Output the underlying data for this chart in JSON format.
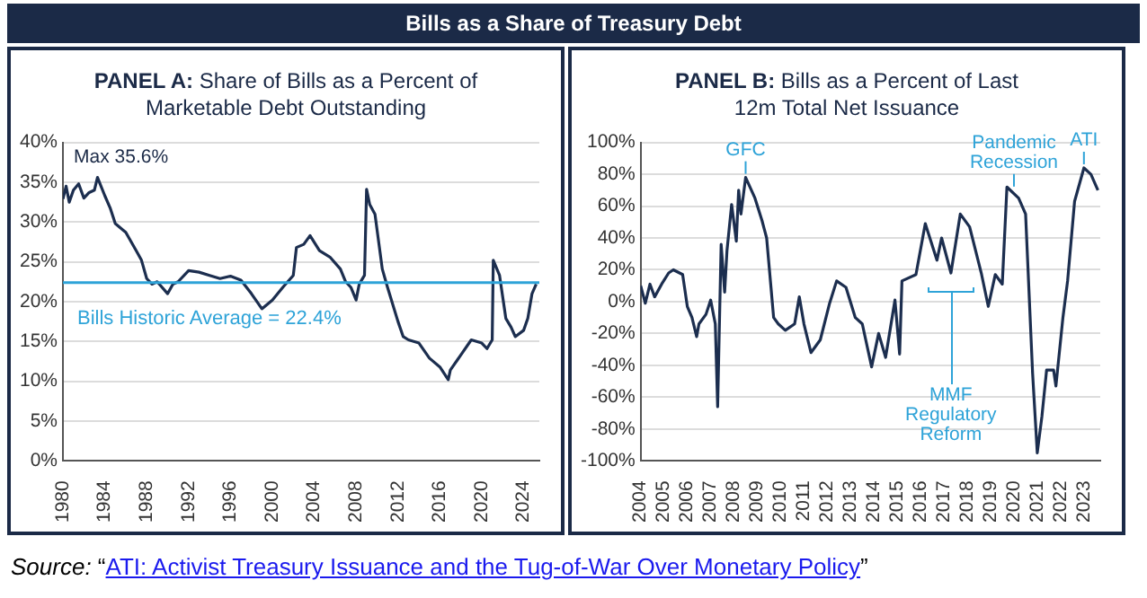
{
  "chart_data": [
    {
      "type": "line",
      "title": "PANEL A: Share of Bills as a Percent of Marketable Debt Outstanding",
      "annotations": [
        "Bills as a Share of Treasury Debt",
        {
          "text": "Max 35.6%",
          "x": 1983.3,
          "y": 35.6
        }
      ],
      "xlim": [
        1980,
        2025.5
      ],
      "xticks": [
        1980,
        1984,
        1988,
        1992,
        1996,
        2000,
        2004,
        2008,
        2012,
        2016,
        2020,
        2024
      ],
      "ylim": [
        0,
        40
      ],
      "yticks": [
        {
          "value": 0,
          "label": "0%"
        },
        {
          "value": 5,
          "label": "5%"
        },
        {
          "value": 10,
          "label": "10%"
        },
        {
          "value": 15,
          "label": "15%"
        },
        {
          "value": 20,
          "label": "20%"
        },
        {
          "value": 25,
          "label": "25%"
        },
        {
          "value": 30,
          "label": "30%"
        },
        {
          "value": 35,
          "label": "35%"
        },
        {
          "value": 40,
          "label": "40%"
        }
      ],
      "grid": "y",
      "ref_lines": [
        {
          "axis": "y",
          "value": 22.4,
          "label": "Bills Historic Average = 22.4%",
          "color": "#2ea3d8"
        }
      ],
      "series": [
        {
          "color": "#1c2e4f",
          "x": [
            1980,
            1980.3,
            1980.6,
            1981,
            1981.5,
            1982,
            1982.5,
            1983,
            1983.3,
            1984,
            1984.5,
            1985,
            1986,
            1987,
            1987.5,
            1988,
            1988.5,
            1989,
            1990,
            1990.5,
            1991,
            1992,
            1993,
            1994,
            1995,
            1996,
            1997,
            1998,
            1999,
            2000,
            2001,
            2002,
            2002.3,
            2003,
            2003.6,
            2004.5,
            2005.5,
            2006.5,
            2007,
            2007.5,
            2008,
            2008.3,
            2008.8,
            2009,
            2009.3,
            2009.8,
            2010.5,
            2011,
            2012,
            2012.5,
            2013,
            2014,
            2015,
            2016,
            2016.8,
            2017,
            2018,
            2019,
            2020,
            2020.5,
            2021,
            2021.1,
            2021.7,
            2022.3,
            2022.8,
            2023.2,
            2024,
            2024.4,
            2024.8,
            2025.2
          ],
          "values": [
            32.9,
            34.5,
            32.5,
            34,
            34.8,
            33,
            33.7,
            34,
            35.6,
            33.3,
            31.8,
            29.8,
            28.7,
            26.4,
            25.2,
            22.9,
            22.2,
            22.5,
            21,
            22.2,
            22.5,
            23.9,
            23.7,
            23.3,
            22.9,
            23.2,
            22.7,
            21,
            19.1,
            20.2,
            21.8,
            23.3,
            26.8,
            27.2,
            28.3,
            26.4,
            25.6,
            24.1,
            22.5,
            21.8,
            20.2,
            22.2,
            23.3,
            34.1,
            32.2,
            31,
            24.1,
            21.8,
            17.5,
            15.6,
            15.2,
            14.8,
            12.9,
            11.8,
            10.2,
            11.4,
            13.3,
            15.2,
            14.8,
            14.1,
            15.2,
            25.2,
            23.3,
            17.9,
            16.8,
            15.6,
            16.4,
            17.9,
            21,
            22.2
          ]
        }
      ]
    },
    {
      "type": "line",
      "title": "PANEL B: Bills as a Percent of Last 12m Total Net Issuance",
      "annotations": [
        {
          "text": "GFC",
          "x": 2008.5,
          "y": 78
        },
        {
          "text": "Pandemic Recession",
          "x": 2020,
          "y": 70
        },
        {
          "text": "ATI",
          "x": 2023,
          "y": 84
        },
        "MMF Regulatory Reform",
        "Source: “ATI: Activist Treasury Issuance and the Tug-of-War Over Monetary Policy”"
      ],
      "xlim": [
        2004,
        2023.7
      ],
      "xticks": [
        2004,
        2005,
        2006,
        2007,
        2008,
        2009,
        2010,
        2011,
        2012,
        2013,
        2014,
        2015,
        2016,
        2017,
        2018,
        2019,
        2020,
        2021,
        2022,
        2023
      ],
      "ylim": [
        -100,
        100
      ],
      "yticks": [
        {
          "value": -100,
          "label": "-100%"
        },
        {
          "value": -80,
          "label": "-80%"
        },
        {
          "value": -60,
          "label": "-60%"
        },
        {
          "value": -40,
          "label": "-40%"
        },
        {
          "value": -20,
          "label": "-20%"
        },
        {
          "value": 0,
          "label": "0%"
        },
        {
          "value": 20,
          "label": "20%"
        },
        {
          "value": 40,
          "label": "40%"
        },
        {
          "value": 60,
          "label": "60%"
        },
        {
          "value": 80,
          "label": "80%"
        },
        {
          "value": 100,
          "label": "100%"
        }
      ],
      "grid": "y",
      "series": [
        {
          "color": "#1c2e4f",
          "x": [
            2004.0,
            2004.2,
            2004.4,
            2004.6,
            2004.9,
            2005.2,
            2005.4,
            2005.8,
            2006.0,
            2006.2,
            2006.4,
            2006.5,
            2006.8,
            2007.0,
            2007.2,
            2007.3,
            2007.45,
            2007.6,
            2007.7,
            2007.9,
            2008.1,
            2008.2,
            2008.3,
            2008.5,
            2008.9,
            2009.2,
            2009.4,
            2009.7,
            2009.9,
            2010.2,
            2010.6,
            2010.8,
            2011.0,
            2011.3,
            2011.7,
            2012.1,
            2012.4,
            2012.8,
            2013.2,
            2013.5,
            2013.9,
            2014.2,
            2014.5,
            2014.8,
            2014.9,
            2015.1,
            2015.2,
            2015.8,
            2016.2,
            2016.7,
            2016.9,
            2017.3,
            2017.7,
            2018.1,
            2018.6,
            2018.9,
            2019.2,
            2019.5,
            2019.7,
            2020.2,
            2020.5,
            2020.8,
            2021.0,
            2021.2,
            2021.4,
            2021.7,
            2021.8,
            2022.1,
            2022.3,
            2022.6,
            2023.0,
            2023.3,
            2023.6
          ],
          "values": [
            10,
            -1,
            11,
            3,
            11,
            18,
            20,
            17,
            -3,
            -10,
            -22,
            -14,
            -8,
            1,
            -14,
            -66,
            36,
            6,
            32,
            61,
            38,
            70,
            55,
            78,
            65,
            51,
            40,
            -10,
            -14,
            -18,
            -14,
            3,
            -14,
            -32,
            -24,
            -1,
            13,
            9,
            -10,
            -14,
            -41,
            -20,
            -35,
            -8,
            1,
            -33,
            13,
            17,
            49,
            26,
            40,
            18,
            55,
            47,
            18,
            -3,
            17,
            11,
            72,
            65,
            55,
            -45,
            -95,
            -72,
            -43,
            -43,
            -53,
            -10,
            13,
            63,
            84,
            80,
            70
          ]
        }
      ]
    }
  ]
}
